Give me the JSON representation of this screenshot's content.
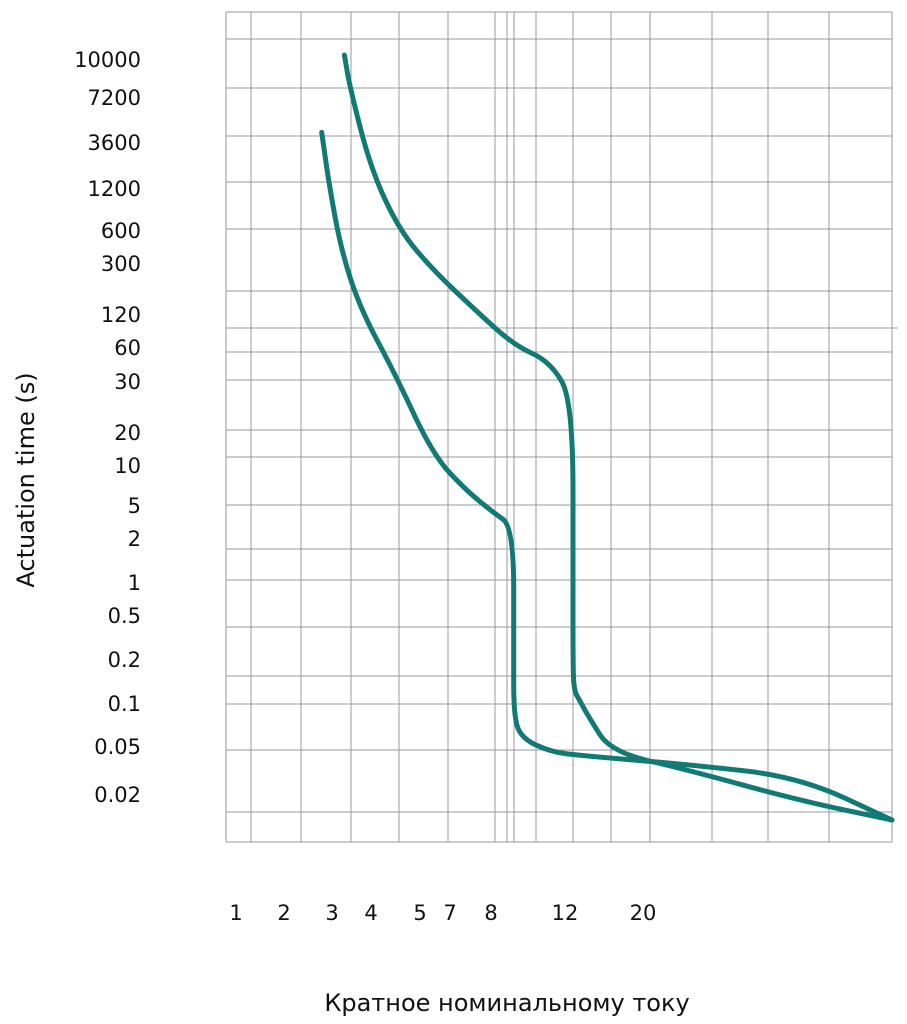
{
  "chart_data": {
    "type": "line",
    "title": "",
    "xlabel": "Кратное номинальному току",
    "ylabel": "Actuation time (s)",
    "x_ticks": [
      "1",
      "2",
      "3",
      "4",
      "5",
      "7",
      "8",
      "12",
      "20"
    ],
    "y_ticks": [
      "10000",
      "7200",
      "3600",
      "1200",
      "600",
      "300",
      "120",
      "60",
      "30",
      "20",
      "10",
      "5",
      "2",
      "1",
      "0.5",
      "0.2",
      "0.1",
      "0.05",
      "0.02"
    ],
    "grid": true,
    "legend": "none",
    "curve_color": "#127a75",
    "series": [
      {
        "x": [
          3.3,
          3.5,
          3.9,
          4.5,
          5.5,
          7.5,
          9.5,
          11.0,
          12.0,
          12.0,
          12.0,
          12.1,
          12.6,
          13.5,
          16.0,
          25.0,
          34.0,
          44.0
        ],
        "y": [
          10000,
          7200,
          2000,
          700,
          250,
          100,
          60,
          40,
          25,
          1,
          0.2,
          0.12,
          0.1,
          0.08,
          0.05,
          0.03,
          0.022,
          0.018
        ]
      },
      {
        "x": [
          2.6,
          2.8,
          3.2,
          3.7,
          4.4,
          5.5,
          7.0,
          8.5,
          9.5,
          9.5,
          9.5,
          9.8,
          11.0,
          13.0,
          16.0,
          25.0,
          34.0,
          44.0
        ],
        "y": [
          3600,
          1600,
          400,
          100,
          35,
          12,
          6,
          4,
          3,
          0.3,
          0.08,
          0.06,
          0.05,
          0.045,
          0.042,
          0.035,
          0.028,
          0.018
        ]
      }
    ]
  }
}
